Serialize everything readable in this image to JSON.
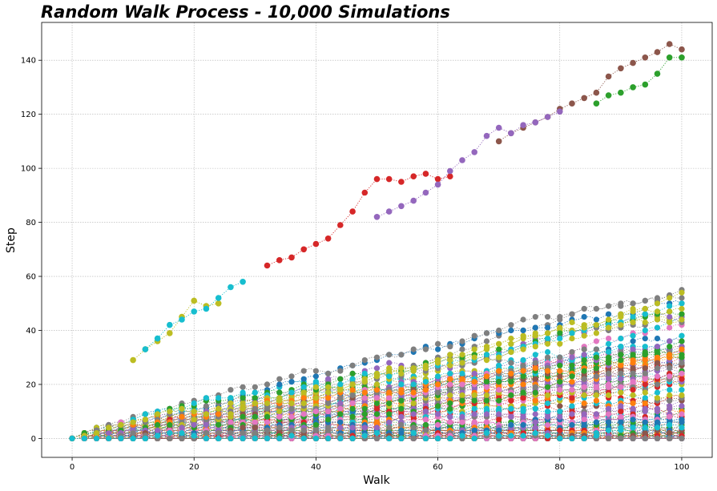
{
  "chart_data": {
    "type": "line",
    "title": "Random Walk Process - 10,000 Simulations",
    "xlabel": "Walk",
    "ylabel": "Step",
    "xlim": [
      -5,
      105
    ],
    "ylim": [
      -7,
      154
    ],
    "xticks": [
      0,
      20,
      40,
      60,
      80,
      100
    ],
    "yticks": [
      0,
      20,
      40,
      60,
      80,
      100,
      120,
      140
    ],
    "grid": true,
    "marker": "circle",
    "linestyle": "dotted",
    "num_simulations": 10000,
    "steps_per_walk": 100,
    "palette": [
      "#1f77b4",
      "#ff7f0e",
      "#2ca02c",
      "#d62728",
      "#9467bd",
      "#8c564b",
      "#e377c2",
      "#7f7f7f",
      "#bcbd22",
      "#17becf"
    ],
    "highlighted_walks": [
      {
        "color": "#8c564b",
        "x": [
          70,
          72,
          74,
          76,
          78,
          80,
          82,
          84,
          86,
          88,
          90,
          92,
          94,
          96,
          98,
          100
        ],
        "y": [
          110,
          113,
          115,
          117,
          119,
          122,
          124,
          126,
          128,
          134,
          137,
          139,
          141,
          143,
          146,
          144
        ]
      },
      {
        "color": "#d62728",
        "x": [
          32,
          34,
          36,
          38,
          40,
          42,
          44,
          46,
          48,
          50,
          52,
          54,
          56,
          58,
          60,
          62
        ],
        "y": [
          64,
          66,
          67,
          70,
          72,
          74,
          79,
          84,
          91,
          96,
          96,
          95,
          97,
          98,
          96,
          97
        ]
      },
      {
        "color": "#9467bd",
        "x": [
          50,
          52,
          54,
          56,
          58,
          60,
          62,
          64,
          66,
          68,
          70,
          72,
          74,
          76,
          78,
          80
        ],
        "y": [
          82,
          84,
          86,
          88,
          91,
          94,
          99,
          103,
          106,
          112,
          115,
          113,
          116,
          117,
          119,
          121
        ]
      },
      {
        "color": "#2ca02c",
        "x": [
          86,
          88,
          90,
          92,
          94,
          96,
          98,
          100
        ],
        "y": [
          124,
          127,
          128,
          130,
          131,
          135,
          141,
          141
        ]
      },
      {
        "color": "#bcbd22",
        "x": [
          10,
          12,
          14,
          16,
          18,
          20,
          22,
          24
        ],
        "y": [
          29,
          33,
          36,
          39,
          45,
          51,
          49,
          50
        ]
      },
      {
        "color": "#17becf",
        "x": [
          12,
          14,
          16,
          18,
          20,
          22,
          24,
          26,
          28
        ],
        "y": [
          33,
          37,
          42,
          44,
          47,
          48,
          52,
          56,
          58
        ]
      }
    ]
  }
}
